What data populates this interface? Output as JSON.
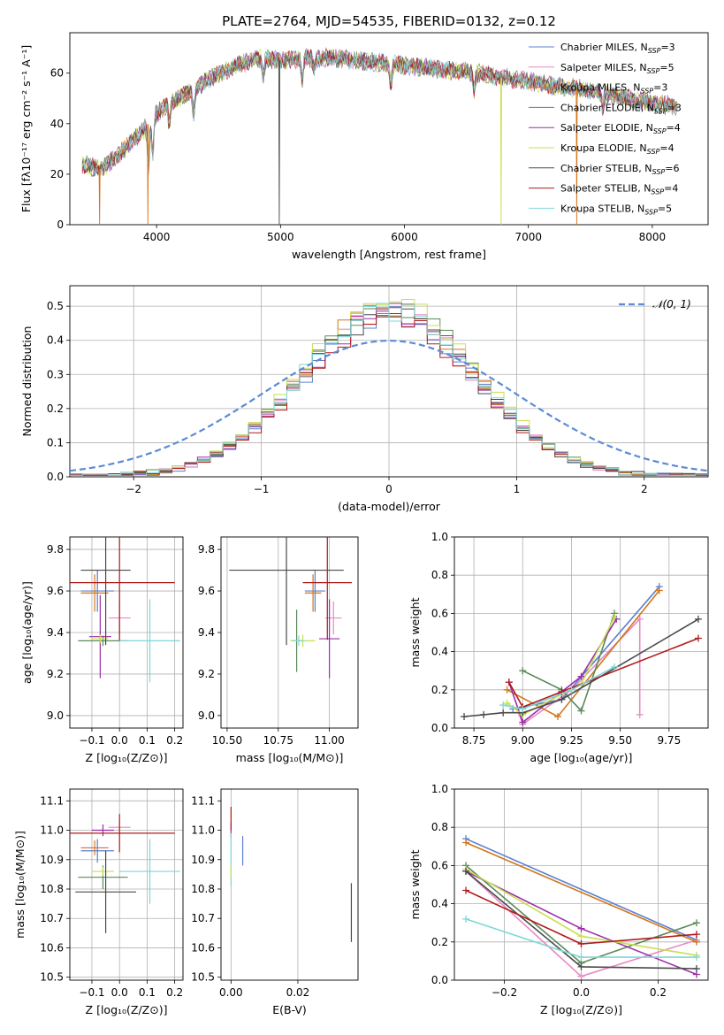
{
  "title": "PLATE=2764, MJD=54535, FIBERID=0132, z=0.12",
  "colors": {
    "Chabrier MILES": "#5b7fd1",
    "Salpeter MILES": "#e88ac4",
    "Kroupa MILES": "#d2761a",
    "Chabrier ELODIE": "#5a8a5a",
    "Salpeter ELODIE": "#9a2ea8",
    "Kroupa ELODIE": "#c8e04e",
    "Chabrier STELIB": "#4a4a4a",
    "Salpeter STELIB": "#b01c1c",
    "Kroupa STELIB": "#7fd6d8",
    "gauss": "#5b8bd8"
  },
  "legend": [
    {
      "name": "Chabrier MILES",
      "label": "Chabrier MILES, N",
      "sub": "SSP",
      "val": "=3"
    },
    {
      "name": "Salpeter MILES",
      "label": "Salpeter MILES, N",
      "sub": "SSP",
      "val": "=5"
    },
    {
      "name": "Kroupa MILES",
      "label": "Kroupa MILES, N",
      "sub": "SSP",
      "val": "=3"
    },
    {
      "name": "Chabrier ELODIE",
      "label": "Chabrier ELODIE, N",
      "sub": "SSP",
      "val": "=3"
    },
    {
      "name": "Salpeter ELODIE",
      "label": "Salpeter ELODIE, N",
      "sub": "SSP",
      "val": "=4"
    },
    {
      "name": "Kroupa ELODIE",
      "label": "Kroupa ELODIE, N",
      "sub": "SSP",
      "val": "=4"
    },
    {
      "name": "Chabrier STELIB",
      "label": "Chabrier STELIB, N",
      "sub": "SSP",
      "val": "=6"
    },
    {
      "name": "Salpeter STELIB",
      "label": "Salpeter STELIB, N",
      "sub": "SSP",
      "val": "=4"
    },
    {
      "name": "Kroupa STELIB",
      "label": "Kroupa STELIB, N",
      "sub": "SSP",
      "val": "=5"
    }
  ],
  "chart_data": [
    {
      "id": "spectrum",
      "type": "line",
      "xlabel": "wavelength [Angstrom, rest frame]",
      "ylabel": "Flux [fλ10⁻¹⁷ erg cm⁻² s⁻¹ A⁻¹]",
      "xlim": [
        3300,
        8450
      ],
      "ylim": [
        0,
        76
      ],
      "xticks": [
        4000,
        5000,
        6000,
        7000,
        8000
      ],
      "yticks": [
        0,
        20,
        40,
        60
      ],
      "continuum": [
        [
          3400,
          24
        ],
        [
          3550,
          22
        ],
        [
          3700,
          28
        ],
        [
          3800,
          33
        ],
        [
          3900,
          38
        ],
        [
          4000,
          44
        ],
        [
          4100,
          48
        ],
        [
          4250,
          52
        ],
        [
          4400,
          57
        ],
        [
          4550,
          61
        ],
        [
          4700,
          64
        ],
        [
          4850,
          66
        ],
        [
          5000,
          65
        ],
        [
          5200,
          66
        ],
        [
          5400,
          66
        ],
        [
          5600,
          65
        ],
        [
          5800,
          64
        ],
        [
          6000,
          63
        ],
        [
          6200,
          62
        ],
        [
          6400,
          61
        ],
        [
          6600,
          60
        ],
        [
          6800,
          58
        ],
        [
          7000,
          57
        ],
        [
          7200,
          55
        ],
        [
          7400,
          54
        ],
        [
          7600,
          52
        ],
        [
          7800,
          50
        ],
        [
          8000,
          48
        ],
        [
          8200,
          47
        ]
      ],
      "features": [
        {
          "x": 3934,
          "depth": 18
        },
        {
          "x": 3969,
          "depth": 14
        },
        {
          "x": 4102,
          "depth": 8
        },
        {
          "x": 4300,
          "depth": 10
        },
        {
          "x": 4861,
          "depth": 8
        },
        {
          "x": 5175,
          "depth": 9
        },
        {
          "x": 5270,
          "depth": 4
        },
        {
          "x": 5890,
          "depth": 8
        },
        {
          "x": 6563,
          "depth": 7
        },
        {
          "x": 7600,
          "depth": 6
        }
      ],
      "dropouts": [
        {
          "x": 3540,
          "series": "Kroupa MILES"
        },
        {
          "x": 3930,
          "series": "Kroupa MILES"
        },
        {
          "x": 4990,
          "series": "Chabrier STELIB"
        },
        {
          "x": 6780,
          "series": "Kroupa ELODIE"
        },
        {
          "x": 7390,
          "series": "Kroupa MILES"
        }
      ],
      "xrange": [
        3400,
        8200
      ]
    },
    {
      "id": "residuals",
      "type": "histogram",
      "xlabel": "(data-model)/error",
      "ylabel": "Normed distribution",
      "xlim": [
        -2.5,
        2.5
      ],
      "ylim": [
        0,
        0.56
      ],
      "xticks": [
        -2,
        -1,
        0,
        1,
        2
      ],
      "xtick_labels": [
        "−2",
        "−1",
        "0",
        "1",
        "2"
      ],
      "yticks": [
        0.0,
        0.1,
        0.2,
        0.3,
        0.4,
        0.5
      ],
      "ytick_labels": [
        "0.0",
        "0.1",
        "0.2",
        "0.3",
        "0.4",
        "0.5"
      ],
      "bin_width": 0.1,
      "gauss_label": "𝒩(0, 1)",
      "peak_heights": {
        "Chabrier MILES": 0.47,
        "Salpeter MILES": 0.48,
        "Kroupa MILES": 0.49,
        "Chabrier ELODIE": 0.5,
        "Salpeter ELODIE": 0.48,
        "Kroupa ELODIE": 0.51,
        "Chabrier STELIB": 0.47,
        "Salpeter STELIB": 0.46,
        "Kroupa STELIB": 0.49
      },
      "sigma": 0.68
    },
    {
      "id": "age_vs_Z",
      "type": "scatter",
      "xlabel": "Z [log₁₀(Z/Z⊙)]",
      "ylabel": "age  [log₁₀(age/yr)]",
      "xlim": [
        -0.18,
        0.23
      ],
      "ylim": [
        8.94,
        9.86
      ],
      "xticks": [
        -0.1,
        0.0,
        0.1,
        0.2
      ],
      "xtick_labels": [
        "−0.1",
        "0.0",
        "0.1",
        "0.2"
      ],
      "yticks": [
        9.0,
        9.2,
        9.4,
        9.6,
        9.8
      ],
      "yticks_labels": [
        "9.0",
        "9.2",
        "9.4",
        "9.6",
        "9.8"
      ],
      "points": [
        {
          "s": "Chabrier MILES",
          "x": -0.08,
          "y": 9.6,
          "xe": 0.06,
          "ye": 0.2
        },
        {
          "s": "Salpeter MILES",
          "x": 0.0,
          "y": 9.47,
          "xe": 0.04,
          "ye": 0.16
        },
        {
          "s": "Kroupa MILES",
          "x": -0.09,
          "y": 9.59,
          "xe": 0.05,
          "ye": 0.18
        },
        {
          "s": "Chabrier ELODIE",
          "x": -0.06,
          "y": 9.36,
          "xe": 0.09,
          "ye": 0.05
        },
        {
          "s": "Salpeter ELODIE",
          "x": -0.07,
          "y": 9.38,
          "xe": 0.04,
          "ye": 0.4
        },
        {
          "s": "Kroupa ELODIE",
          "x": -0.07,
          "y": 9.37,
          "xe": 0.03,
          "ye": 0.04
        },
        {
          "s": "Chabrier STELIB",
          "x": -0.05,
          "y": 9.7,
          "xe": 0.09,
          "ye": 0.72
        },
        {
          "s": "Salpeter STELIB",
          "x": 0.0,
          "y": 9.64,
          "xe": 0.2,
          "ye": 0.56
        },
        {
          "s": "Kroupa STELIB",
          "x": 0.11,
          "y": 9.36,
          "xe": 0.11,
          "ye": 0.4
        }
      ]
    },
    {
      "id": "age_vs_mass",
      "type": "scatter",
      "xlabel": "mass [log₁₀(M/M⊙)]",
      "xlim": [
        10.47,
        11.14
      ],
      "ylim": [
        8.94,
        9.86
      ],
      "xticks": [
        10.5,
        10.75,
        11.0
      ],
      "xtick_labels": [
        "10.50",
        "10.75",
        "11.00"
      ],
      "points": [
        {
          "s": "Chabrier MILES",
          "x": 10.93,
          "y": 9.6,
          "xe": 0.05,
          "ye": 0.2
        },
        {
          "s": "Salpeter MILES",
          "x": 11.02,
          "y": 9.47,
          "xe": 0.04,
          "ye": 0.16
        },
        {
          "s": "Kroupa MILES",
          "x": 10.92,
          "y": 9.59,
          "xe": 0.04,
          "ye": 0.18
        },
        {
          "s": "Chabrier ELODIE",
          "x": 10.84,
          "y": 9.36,
          "xe": 0.03,
          "ye": 0.3
        },
        {
          "s": "Salpeter ELODIE",
          "x": 11.0,
          "y": 9.37,
          "xe": 0.05,
          "ye": 0.38
        },
        {
          "s": "Kroupa ELODIE",
          "x": 10.87,
          "y": 9.36,
          "xe": 0.06,
          "ye": 0.06
        },
        {
          "s": "Chabrier STELIB",
          "x": 10.79,
          "y": 9.7,
          "xe": 0.28,
          "ye": 0.72
        },
        {
          "s": "Salpeter STELIB",
          "x": 10.99,
          "y": 9.64,
          "xe": 0.12,
          "ye": 0.55
        },
        {
          "s": "Kroupa STELIB",
          "x": 10.85,
          "y": 9.36,
          "xe": 0.03,
          "ye": 0.05
        }
      ]
    },
    {
      "id": "weight_vs_age",
      "type": "line",
      "xlabel": "age  [log₁₀(age/yr)]",
      "ylabel": "mass weight",
      "xlim": [
        8.65,
        9.95
      ],
      "ylim": [
        0.0,
        1.0
      ],
      "xticks": [
        8.75,
        9.0,
        9.25,
        9.5,
        9.75
      ],
      "xtick_labels": [
        "8.75",
        "9.00",
        "9.25",
        "9.50",
        "9.75"
      ],
      "yticks": [
        0.0,
        0.2,
        0.4,
        0.6,
        0.8,
        1.0
      ],
      "ytick_labels": [
        "0.0",
        "0.2",
        "0.4",
        "0.6",
        "0.8",
        "1.0"
      ],
      "series": [
        {
          "name": "Chabrier MILES",
          "points": [
            [
              8.95,
              0.1
            ],
            [
              9.2,
              0.15
            ],
            [
              9.7,
              0.74
            ]
          ]
        },
        {
          "name": "Salpeter MILES",
          "points": [
            [
              8.98,
              0.08
            ],
            [
              9.0,
              0.02
            ],
            [
              9.25,
              0.2
            ],
            [
              9.6,
              0.57
            ],
            [
              9.6,
              0.07
            ]
          ]
        },
        {
          "name": "Kroupa MILES",
          "points": [
            [
              8.92,
              0.2
            ],
            [
              9.18,
              0.06
            ],
            [
              9.7,
              0.72
            ]
          ]
        },
        {
          "name": "Chabrier ELODIE",
          "points": [
            [
              9.0,
              0.3
            ],
            [
              9.2,
              0.2
            ],
            [
              9.3,
              0.09
            ],
            [
              9.47,
              0.6
            ]
          ]
        },
        {
          "name": "Salpeter ELODIE",
          "points": [
            [
              8.93,
              0.24
            ],
            [
              9.0,
              0.03
            ],
            [
              9.3,
              0.27
            ],
            [
              9.48,
              0.57
            ]
          ]
        },
        {
          "name": "Kroupa ELODIE",
          "points": [
            [
              8.92,
              0.13
            ],
            [
              9.0,
              0.07
            ],
            [
              9.3,
              0.23
            ],
            [
              9.47,
              0.58
            ]
          ]
        },
        {
          "name": "Chabrier STELIB",
          "points": [
            [
              8.7,
              0.06
            ],
            [
              8.8,
              0.07
            ],
            [
              8.9,
              0.08
            ],
            [
              9.0,
              0.08
            ],
            [
              9.2,
              0.15
            ],
            [
              9.9,
              0.57
            ]
          ]
        },
        {
          "name": "Salpeter STELIB",
          "points": [
            [
              8.93,
              0.24
            ],
            [
              9.0,
              0.11
            ],
            [
              9.2,
              0.19
            ],
            [
              9.9,
              0.47
            ]
          ]
        },
        {
          "name": "Kroupa STELIB",
          "points": [
            [
              8.9,
              0.12
            ],
            [
              9.0,
              0.1
            ],
            [
              9.25,
              0.2
            ],
            [
              9.47,
              0.32
            ]
          ]
        }
      ]
    },
    {
      "id": "mass_vs_Z",
      "type": "scatter",
      "xlabel": "Z [log₁₀(Z/Z⊙)]",
      "ylabel": "mass [log₁₀(M/M⊙)]",
      "xlim": [
        -0.18,
        0.23
      ],
      "ylim": [
        10.49,
        11.14
      ],
      "xticks": [
        -0.1,
        0.0,
        0.1,
        0.2
      ],
      "xtick_labels": [
        "−0.1",
        "0.0",
        "0.1",
        "0.2"
      ],
      "yticks": [
        10.5,
        10.6,
        10.7,
        10.8,
        10.9,
        11.0,
        11.1
      ],
      "ytick_labels": [
        "10.5",
        "10.6",
        "10.7",
        "10.8",
        "10.9",
        "11.0",
        "11.1"
      ],
      "points": [
        {
          "s": "Chabrier MILES",
          "x": -0.08,
          "y": 10.93,
          "xe": 0.06,
          "ye": 0.08
        },
        {
          "s": "Salpeter MILES",
          "x": 0.0,
          "y": 11.01,
          "xe": 0.04,
          "ye": 0.04
        },
        {
          "s": "Kroupa MILES",
          "x": -0.09,
          "y": 10.94,
          "xe": 0.05,
          "ye": 0.05
        },
        {
          "s": "Chabrier ELODIE",
          "x": -0.06,
          "y": 10.84,
          "xe": 0.09,
          "ye": 0.08
        },
        {
          "s": "Salpeter ELODIE",
          "x": -0.06,
          "y": 11.0,
          "xe": 0.04,
          "ye": 0.04
        },
        {
          "s": "Kroupa ELODIE",
          "x": -0.06,
          "y": 10.86,
          "xe": 0.04,
          "ye": 0.03
        },
        {
          "s": "Chabrier STELIB",
          "x": -0.05,
          "y": 10.79,
          "xe": 0.11,
          "ye": 0.28
        },
        {
          "s": "Salpeter STELIB",
          "x": 0.0,
          "y": 10.99,
          "xe": 0.2,
          "ye": 0.13
        },
        {
          "s": "Kroupa STELIB",
          "x": 0.11,
          "y": 10.86,
          "xe": 0.11,
          "ye": 0.22
        }
      ]
    },
    {
      "id": "mass_vs_ebv",
      "type": "scatter",
      "xlabel": "E(B-V)",
      "xlim": [
        -0.003,
        0.038
      ],
      "ylim": [
        10.49,
        11.14
      ],
      "xticks": [
        0.0,
        0.02
      ],
      "xtick_labels": [
        "0.00",
        "0.02"
      ],
      "points": [
        {
          "s": "Chabrier MILES",
          "x": 0.0035,
          "y": 10.93,
          "xe": 0.0,
          "ye": 0.1
        },
        {
          "s": "Salpeter ELODIE",
          "x": 0.0,
          "y": 11.0,
          "xe": 0.0,
          "ye": 0.05
        },
        {
          "s": "Salpeter STELIB",
          "x": 0.0,
          "y": 11.04,
          "xe": 0.0,
          "ye": 0.08
        },
        {
          "s": "Kroupa STELIB",
          "x": 0.0,
          "y": 10.9,
          "xe": 0.0,
          "ye": 0.18
        },
        {
          "s": "Kroupa ELODIE",
          "x": 0.0,
          "y": 10.86,
          "xe": 0.0,
          "ye": 0.04
        },
        {
          "s": "Chabrier STELIB",
          "x": 0.036,
          "y": 10.72,
          "xe": 0.0,
          "ye": 0.2
        }
      ]
    },
    {
      "id": "weight_vs_Z",
      "type": "line",
      "xlabel": "Z [log₁₀(Z/Z⊙)]",
      "ylabel": "mass weight",
      "xlim": [
        -0.33,
        0.33
      ],
      "ylim": [
        0.0,
        1.0
      ],
      "xticks": [
        -0.2,
        0.0,
        0.2
      ],
      "xtick_labels": [
        "−0.2",
        "0.0",
        "0.2"
      ],
      "yticks": [
        0.0,
        0.2,
        0.4,
        0.6,
        0.8,
        1.0
      ],
      "ytick_labels": [
        "0.0",
        "0.2",
        "0.4",
        "0.6",
        "0.8",
        "1.0"
      ],
      "series": [
        {
          "name": "Chabrier MILES",
          "points": [
            [
              -0.3,
              0.74
            ],
            [
              0.3,
              0.21
            ]
          ]
        },
        {
          "name": "Salpeter MILES",
          "points": [
            [
              -0.3,
              0.57
            ],
            [
              0.0,
              0.02
            ],
            [
              0.3,
              0.21
            ]
          ]
        },
        {
          "name": "Kroupa MILES",
          "points": [
            [
              -0.3,
              0.72
            ],
            [
              0.3,
              0.2
            ]
          ]
        },
        {
          "name": "Chabrier ELODIE",
          "points": [
            [
              -0.3,
              0.6
            ],
            [
              0.0,
              0.09
            ],
            [
              0.3,
              0.3
            ]
          ]
        },
        {
          "name": "Salpeter ELODIE",
          "points": [
            [
              -0.3,
              0.57
            ],
            [
              0.0,
              0.27
            ],
            [
              0.3,
              0.03
            ]
          ]
        },
        {
          "name": "Kroupa ELODIE",
          "points": [
            [
              -0.3,
              0.58
            ],
            [
              0.0,
              0.23
            ],
            [
              0.3,
              0.13
            ]
          ]
        },
        {
          "name": "Chabrier STELIB",
          "points": [
            [
              -0.3,
              0.57
            ],
            [
              0.0,
              0.07
            ],
            [
              0.3,
              0.06
            ]
          ]
        },
        {
          "name": "Salpeter STELIB",
          "points": [
            [
              -0.3,
              0.47
            ],
            [
              0.0,
              0.19
            ],
            [
              0.3,
              0.24
            ]
          ]
        },
        {
          "name": "Kroupa STELIB",
          "points": [
            [
              -0.3,
              0.32
            ],
            [
              0.0,
              0.12
            ],
            [
              0.3,
              0.12
            ]
          ]
        }
      ]
    }
  ]
}
